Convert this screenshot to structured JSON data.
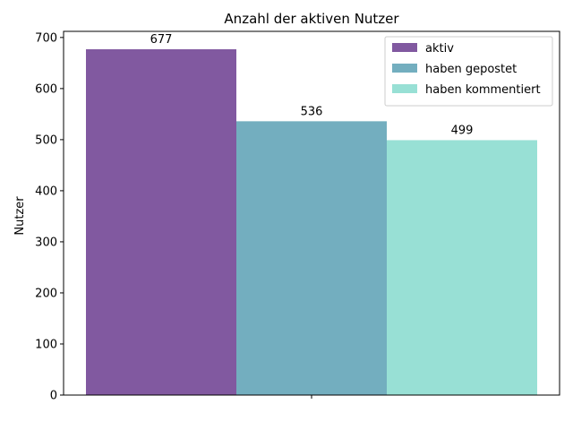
{
  "chart_data": {
    "type": "bar",
    "title": "Anzahl der aktiven Nutzer",
    "xlabel": "",
    "ylabel": "Nutzer",
    "ylim": [
      0,
      712
    ],
    "yticks": [
      0,
      100,
      200,
      300,
      400,
      500,
      600,
      700
    ],
    "grid": false,
    "legend_position": "top-right",
    "categories": [
      ""
    ],
    "series": [
      {
        "name": "aktiv",
        "values": [
          677
        ],
        "color": "#8159a0"
      },
      {
        "name": "haben gepostet",
        "values": [
          536
        ],
        "color": "#73aebf"
      },
      {
        "name": "haben kommentiert",
        "values": [
          499
        ],
        "color": "#98e0d5"
      }
    ]
  }
}
